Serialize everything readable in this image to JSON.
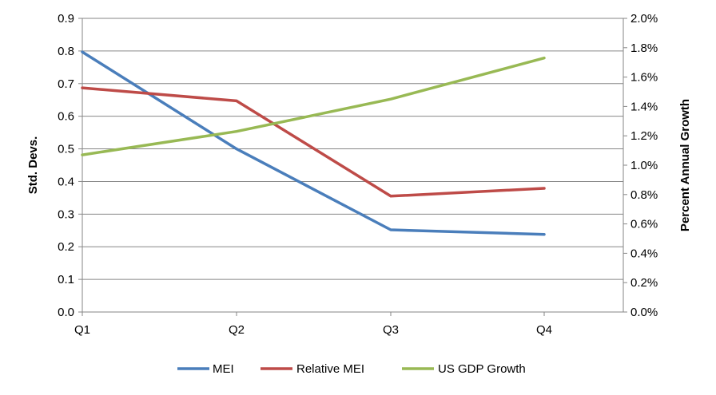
{
  "chart_data": {
    "type": "line",
    "categories": [
      "Q1",
      "Q2",
      "Q3",
      "Q4"
    ],
    "ylabel": "Std. Devs.",
    "y2label": "Percent Annual Growth",
    "ylim": [
      0,
      0.9
    ],
    "yticks": [
      "0.0",
      "0.1",
      "0.2",
      "0.3",
      "0.4",
      "0.5",
      "0.6",
      "0.7",
      "0.8",
      "0.9"
    ],
    "y2lim": [
      0,
      0.02
    ],
    "y2ticks": [
      "0.0%",
      "0.2%",
      "0.4%",
      "0.6%",
      "0.8%",
      "1.0%",
      "1.2%",
      "1.4%",
      "1.6%",
      "1.8%",
      "2.0%"
    ],
    "grid": true,
    "legend_position": "bottom",
    "series": [
      {
        "name": "MEI",
        "axis": "left",
        "color": "#4A7EBB",
        "values": [
          0.797,
          0.5,
          0.252,
          0.238
        ]
      },
      {
        "name": "Relative MEI",
        "axis": "left",
        "color": "#BE4B48",
        "values": [
          0.687,
          0.647,
          0.355,
          0.379
        ]
      },
      {
        "name": "US GDP Growth",
        "axis": "right",
        "color": "#98B954",
        "values": [
          0.0107,
          0.0123,
          0.0145,
          0.0173
        ]
      }
    ]
  }
}
